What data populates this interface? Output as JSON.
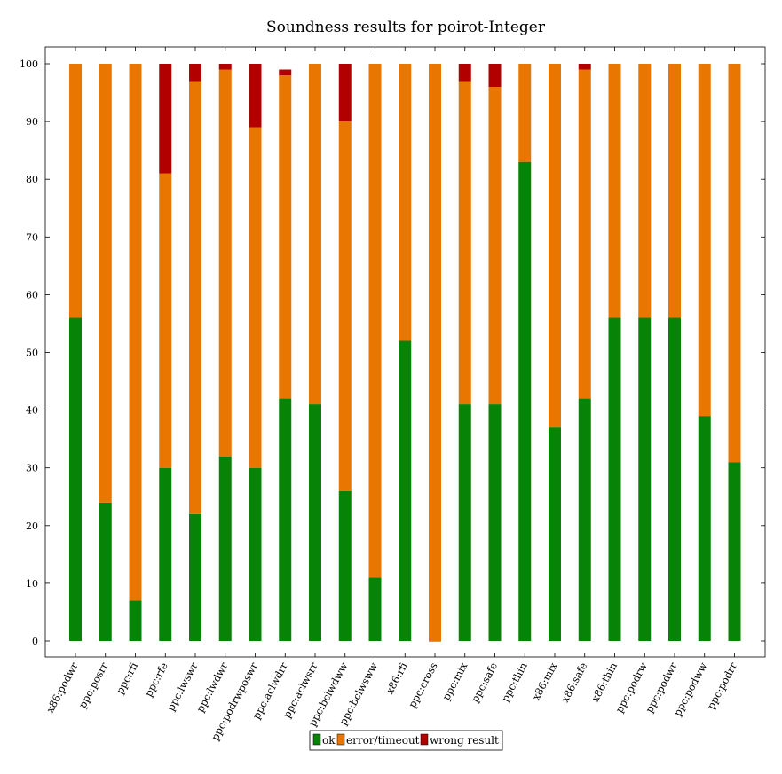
{
  "chart_data": {
    "type": "bar",
    "stacked": true,
    "title": "Soundness results for poirot-Integer",
    "xlabel": "",
    "ylabel": "",
    "ylim": [
      -2.5,
      103
    ],
    "yticks": [
      0,
      10,
      20,
      30,
      40,
      50,
      60,
      70,
      80,
      90,
      100
    ],
    "grid": false,
    "legend_position": "bottom-center",
    "categories": [
      "x86:podwr",
      "ppc:posrr",
      "ppc:rfi",
      "ppc:rfe",
      "ppc:lwswr",
      "ppc:lwdwr",
      "ppc:podrwposwr",
      "ppc:aclwdrr",
      "ppc:aclwsrr",
      "ppc:bclwdww",
      "ppc:bclwsww",
      "x86:rfi",
      "ppc:cross",
      "ppc:mix",
      "ppc:safe",
      "ppc:thin",
      "x86:mix",
      "x86:safe",
      "x86:thin",
      "ppc:podrw",
      "ppc:podwr",
      "ppc:podww",
      "ppc:podrr"
    ],
    "series": [
      {
        "name": "ok",
        "color": "#078307",
        "values": [
          56,
          24,
          7,
          30,
          22,
          32,
          30,
          42,
          41,
          26,
          11,
          52,
          0,
          41,
          41,
          83,
          37,
          42,
          56,
          56,
          56,
          39,
          31
        ]
      },
      {
        "name": "error/timeout",
        "color": "#e87600",
        "values": [
          44,
          76,
          93,
          51,
          75,
          67,
          59,
          56,
          59,
          64,
          89,
          48,
          100,
          56,
          55,
          17,
          63,
          57,
          44,
          44,
          44,
          61,
          69
        ]
      },
      {
        "name": "wrong result",
        "color": "#b20000",
        "values": [
          0,
          0,
          0,
          19,
          3,
          1,
          11,
          1,
          0,
          10,
          0,
          0,
          0,
          3,
          4,
          0,
          0,
          1,
          0,
          0,
          0,
          0,
          0
        ]
      }
    ]
  }
}
